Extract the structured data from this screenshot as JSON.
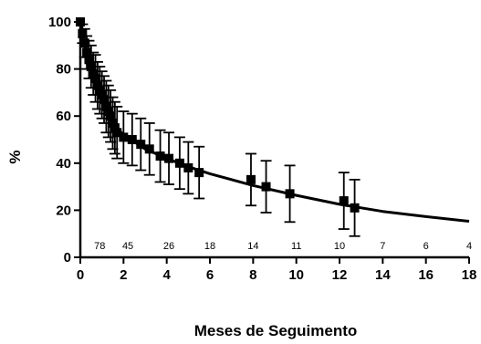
{
  "chart_data": {
    "type": "scatter",
    "title": "",
    "xlabel": "Meses de Seguimento",
    "ylabel": "%",
    "xlim": [
      0,
      18
    ],
    "ylim": [
      0,
      100
    ],
    "x_ticks": [
      0,
      2,
      4,
      6,
      8,
      10,
      12,
      14,
      16,
      18
    ],
    "y_ticks": [
      0,
      20,
      40,
      60,
      80,
      100
    ],
    "grid": false,
    "legend": "none",
    "series": [
      {
        "type": "scatter-errorbar",
        "points": [
          {
            "x": 0.0,
            "y": 100,
            "err": 0
          },
          {
            "x": 0.1,
            "y": 95,
            "err": 4
          },
          {
            "x": 0.2,
            "y": 91,
            "err": 6
          },
          {
            "x": 0.3,
            "y": 87,
            "err": 7
          },
          {
            "x": 0.4,
            "y": 84,
            "err": 8
          },
          {
            "x": 0.5,
            "y": 81,
            "err": 9
          },
          {
            "x": 0.6,
            "y": 78,
            "err": 9
          },
          {
            "x": 0.7,
            "y": 76,
            "err": 10
          },
          {
            "x": 0.8,
            "y": 73,
            "err": 10
          },
          {
            "x": 0.9,
            "y": 71,
            "err": 10
          },
          {
            "x": 1.0,
            "y": 69,
            "err": 10
          },
          {
            "x": 1.1,
            "y": 67,
            "err": 10
          },
          {
            "x": 1.2,
            "y": 64,
            "err": 11
          },
          {
            "x": 1.3,
            "y": 62,
            "err": 11
          },
          {
            "x": 1.4,
            "y": 60,
            "err": 11
          },
          {
            "x": 1.5,
            "y": 57,
            "err": 11
          },
          {
            "x": 1.6,
            "y": 55,
            "err": 11
          },
          {
            "x": 1.7,
            "y": 53,
            "err": 11
          },
          {
            "x": 2.0,
            "y": 51,
            "err": 11
          },
          {
            "x": 2.4,
            "y": 50,
            "err": 11
          },
          {
            "x": 2.8,
            "y": 48,
            "err": 11
          },
          {
            "x": 3.2,
            "y": 46,
            "err": 11
          },
          {
            "x": 3.7,
            "y": 43,
            "err": 11
          },
          {
            "x": 4.1,
            "y": 42,
            "err": 11
          },
          {
            "x": 4.6,
            "y": 40,
            "err": 11
          },
          {
            "x": 5.0,
            "y": 38,
            "err": 11
          },
          {
            "x": 5.5,
            "y": 36,
            "err": 11
          },
          {
            "x": 7.9,
            "y": 33,
            "err": 11
          },
          {
            "x": 8.6,
            "y": 30,
            "err": 11
          },
          {
            "x": 9.7,
            "y": 27,
            "err": 12
          },
          {
            "x": 12.2,
            "y": 24,
            "err": 12
          },
          {
            "x": 12.7,
            "y": 21,
            "err": 12
          }
        ]
      },
      {
        "type": "line",
        "x": [
          0,
          0.25,
          0.5,
          0.75,
          1,
          1.5,
          2,
          3,
          4,
          5,
          6,
          8,
          10,
          12,
          14,
          16,
          18
        ],
        "y": [
          100,
          88,
          79,
          72,
          66,
          57,
          52,
          46,
          42,
          38.5,
          35.5,
          30.5,
          26.3,
          22.5,
          19.5,
          17.3,
          15.3
        ]
      }
    ],
    "annotations": [
      {
        "x": 0.9,
        "text": "78"
      },
      {
        "x": 2.2,
        "text": "45"
      },
      {
        "x": 4.1,
        "text": "26"
      },
      {
        "x": 6.0,
        "text": "18"
      },
      {
        "x": 8.0,
        "text": "14"
      },
      {
        "x": 10.0,
        "text": "11"
      },
      {
        "x": 12.0,
        "text": "10"
      },
      {
        "x": 14.0,
        "text": "7"
      },
      {
        "x": 16.0,
        "text": "6"
      },
      {
        "x": 18.0,
        "text": "4"
      }
    ],
    "annotation_y": 5
  },
  "style": {
    "axis_color": "#000000",
    "mark_color": "#000000"
  }
}
